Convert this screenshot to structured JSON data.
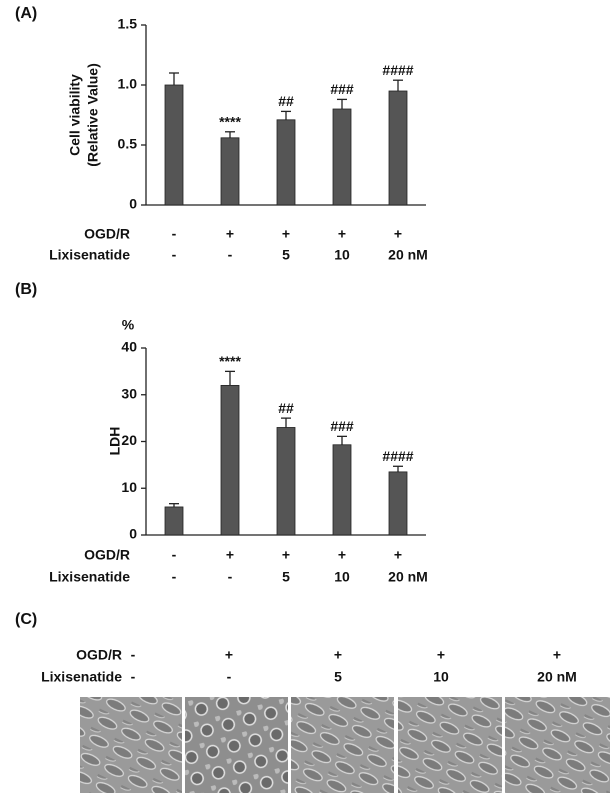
{
  "chart_data": [
    {
      "type": "bar",
      "panel_label": "(A)",
      "y_label": [
        "Cell viability",
        "(Relative Value)"
      ],
      "values": [
        1.0,
        0.56,
        0.71,
        0.8,
        0.95
      ],
      "errors": [
        0.1,
        0.05,
        0.07,
        0.08,
        0.09
      ],
      "annotations": [
        null,
        "****",
        "##",
        "###",
        "####"
      ],
      "color": "#555555",
      "ylim": [
        0,
        1.5
      ],
      "yticks": [
        0,
        0.5,
        {
          "value": 1,
          "label": "1.0"
        },
        1.5
      ],
      "treatments": [
        {
          "name": "OGD/R",
          "labels": [
            "-",
            "+",
            "+",
            "+",
            "+"
          ]
        },
        {
          "name": "Lixisenatide",
          "labels": [
            "-",
            "-",
            "5",
            "10",
            "20 nM"
          ]
        }
      ]
    },
    {
      "type": "bar",
      "panel_label": "(B)",
      "y_unit": "%",
      "y_label": [
        "LDH"
      ],
      "values": [
        6,
        32,
        23,
        19.3,
        13.5
      ],
      "errors": [
        0.7,
        3,
        2,
        1.8,
        1.2
      ],
      "annotations": [
        null,
        "****",
        "##",
        "###",
        "####"
      ],
      "color": "#555555",
      "ylim": [
        0,
        40
      ],
      "yticks": [
        0,
        10,
        20,
        30,
        40
      ],
      "treatments": [
        {
          "name": "OGD/R",
          "labels": [
            "-",
            "+",
            "+",
            "+",
            "+"
          ]
        },
        {
          "name": "Lixisenatide",
          "labels": [
            "-",
            "-",
            "5",
            "10",
            "20 nM"
          ]
        }
      ]
    }
  ],
  "panel_c": {
    "label": "(C)",
    "treatments": [
      {
        "name": "OGD/R",
        "labels": [
          "-",
          "+",
          "+",
          "+",
          "+"
        ]
      },
      {
        "name": "Lixisenatide",
        "labels": [
          "-",
          "-",
          "5",
          "10",
          "20 nM"
        ]
      }
    ]
  }
}
